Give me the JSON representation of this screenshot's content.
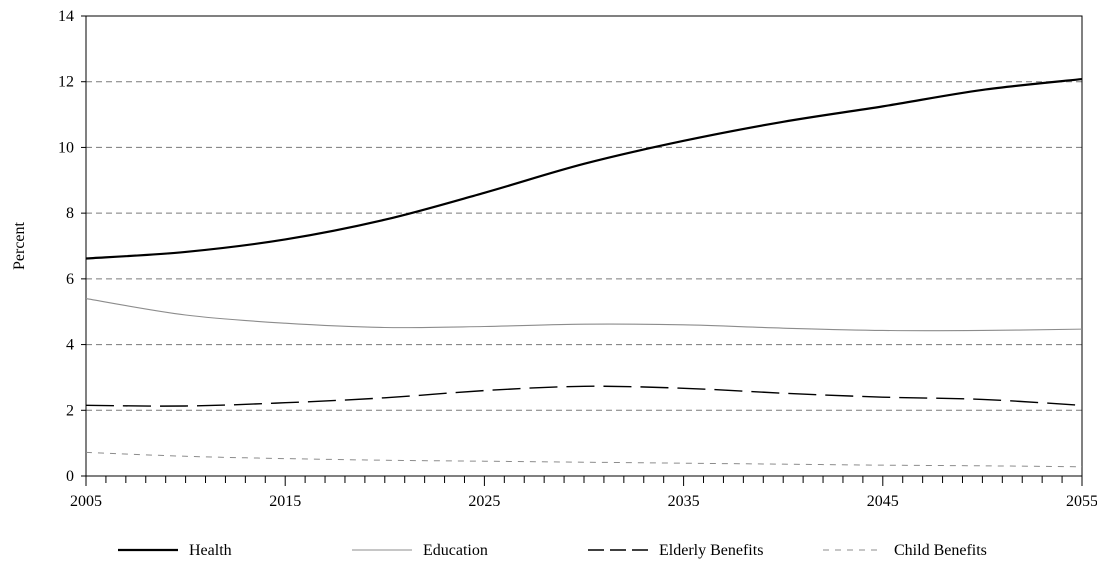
{
  "chart_data": {
    "type": "line",
    "title": "",
    "xlabel": "",
    "ylabel": "Percent",
    "xlim": [
      2005,
      2055
    ],
    "ylim": [
      0,
      14
    ],
    "x_ticks": [
      2005,
      2015,
      2025,
      2035,
      2045,
      2055
    ],
    "y_ticks": [
      0,
      2,
      4,
      6,
      8,
      10,
      12,
      14
    ],
    "x_tick_labels": [
      "2005",
      "2015",
      "2025",
      "2035",
      "2045",
      "2055"
    ],
    "y_tick_labels": [
      "0",
      "2",
      "4",
      "6",
      "8",
      "10",
      "12",
      "14"
    ],
    "grid": "horizontal dashed at major y ticks",
    "legend_position": "bottom",
    "x": [
      2005,
      2010,
      2015,
      2020,
      2025,
      2030,
      2035,
      2040,
      2045,
      2050,
      2055
    ],
    "series": [
      {
        "name": "Health",
        "style": "solid-thick",
        "color": "#000000",
        "values": [
          6.62,
          6.82,
          7.2,
          7.8,
          8.62,
          9.5,
          10.2,
          10.78,
          11.25,
          11.75,
          12.08
        ]
      },
      {
        "name": "Education",
        "style": "solid-thin",
        "color": "#8c8c8c",
        "values": [
          5.4,
          4.9,
          4.65,
          4.52,
          4.55,
          4.62,
          4.6,
          4.5,
          4.43,
          4.43,
          4.47
        ]
      },
      {
        "name": "Elderly Benefits",
        "style": "long-dash",
        "color": "#000000",
        "values": [
          2.15,
          2.13,
          2.23,
          2.38,
          2.6,
          2.73,
          2.67,
          2.52,
          2.4,
          2.33,
          2.15
        ]
      },
      {
        "name": "Child Benefits",
        "style": "short-dash",
        "color": "#8c8c8c",
        "values": [
          0.72,
          0.6,
          0.53,
          0.48,
          0.45,
          0.42,
          0.39,
          0.36,
          0.33,
          0.31,
          0.28
        ]
      }
    ]
  }
}
